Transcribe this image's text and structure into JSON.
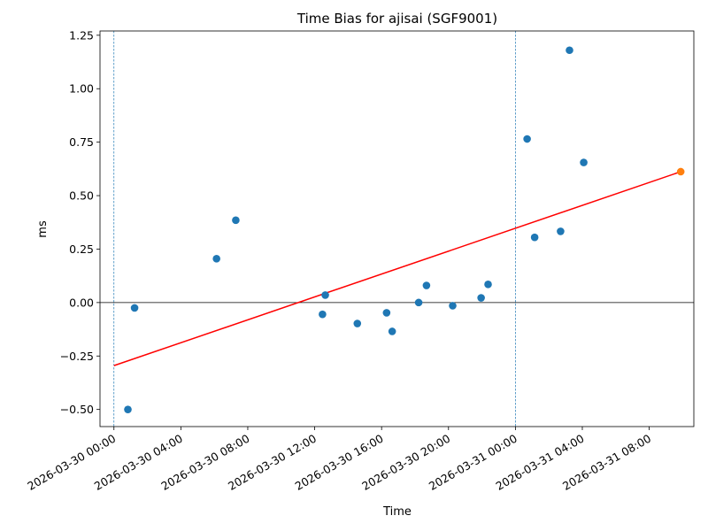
{
  "chart_data": {
    "type": "scatter",
    "title": "Time Bias for ajisai (SGF9001)",
    "xlabel": "Time",
    "ylabel": "ms",
    "x_axis_type": "datetime",
    "xlim": [
      "2026-03-29T23:10",
      "2026-03-31T10:40"
    ],
    "ylim": [
      -0.58,
      1.27
    ],
    "x_ticks": [
      "2026-03-30 00:00",
      "2026-03-30 04:00",
      "2026-03-30 08:00",
      "2026-03-30 12:00",
      "2026-03-30 16:00",
      "2026-03-30 20:00",
      "2026-03-31 00:00",
      "2026-03-31 04:00",
      "2026-03-31 08:00"
    ],
    "y_ticks": [
      "−0.50",
      "−0.25",
      "0.00",
      "0.25",
      "0.50",
      "0.75",
      "1.00",
      "1.25"
    ],
    "y_tick_values": [
      -0.5,
      -0.25,
      0.0,
      0.25,
      0.5,
      0.75,
      1.0,
      1.25
    ],
    "grid": false,
    "series": [
      {
        "color": "#1f77b4",
        "points": [
          {
            "x": "2026-03-30T00:50",
            "y": -0.5
          },
          {
            "x": "2026-03-30T01:14",
            "y": -0.025
          },
          {
            "x": "2026-03-30T06:08",
            "y": 0.205
          },
          {
            "x": "2026-03-30T07:17",
            "y": 0.385
          },
          {
            "x": "2026-03-30T12:28",
            "y": -0.055
          },
          {
            "x": "2026-03-30T12:38",
            "y": 0.035
          },
          {
            "x": "2026-03-30T14:33",
            "y": -0.098
          },
          {
            "x": "2026-03-30T16:18",
            "y": -0.048
          },
          {
            "x": "2026-03-30T16:38",
            "y": -0.135
          },
          {
            "x": "2026-03-30T18:13",
            "y": 0.0
          },
          {
            "x": "2026-03-30T18:41",
            "y": 0.08
          },
          {
            "x": "2026-03-30T20:15",
            "y": -0.015
          },
          {
            "x": "2026-03-30T21:57",
            "y": 0.022
          },
          {
            "x": "2026-03-30T22:22",
            "y": 0.085
          },
          {
            "x": "2026-03-31T00:42",
            "y": 0.765
          },
          {
            "x": "2026-03-31T01:09",
            "y": 0.305
          },
          {
            "x": "2026-03-31T02:42",
            "y": 0.333
          },
          {
            "x": "2026-03-31T03:14",
            "y": 1.18
          },
          {
            "x": "2026-03-31T04:05",
            "y": 0.655
          }
        ]
      },
      {
        "color": "#ff7f0e",
        "points": [
          {
            "x": "2026-03-31T09:53",
            "y": 0.612
          }
        ]
      }
    ],
    "trend_line": {
      "color": "#ff0000",
      "x": [
        "2026-03-30T00:00",
        "2026-03-31T09:53"
      ],
      "y": [
        -0.295,
        0.612
      ]
    },
    "reference_lines": [
      {
        "orientation": "horizontal",
        "y": 0.0,
        "color": "#000000",
        "style": "solid"
      },
      {
        "orientation": "vertical",
        "x": "2026-03-30T00:00",
        "color": "#1f77b4",
        "style": "dashed"
      },
      {
        "orientation": "vertical",
        "x": "2026-03-31T00:00",
        "color": "#1f77b4",
        "style": "dashed"
      }
    ]
  }
}
